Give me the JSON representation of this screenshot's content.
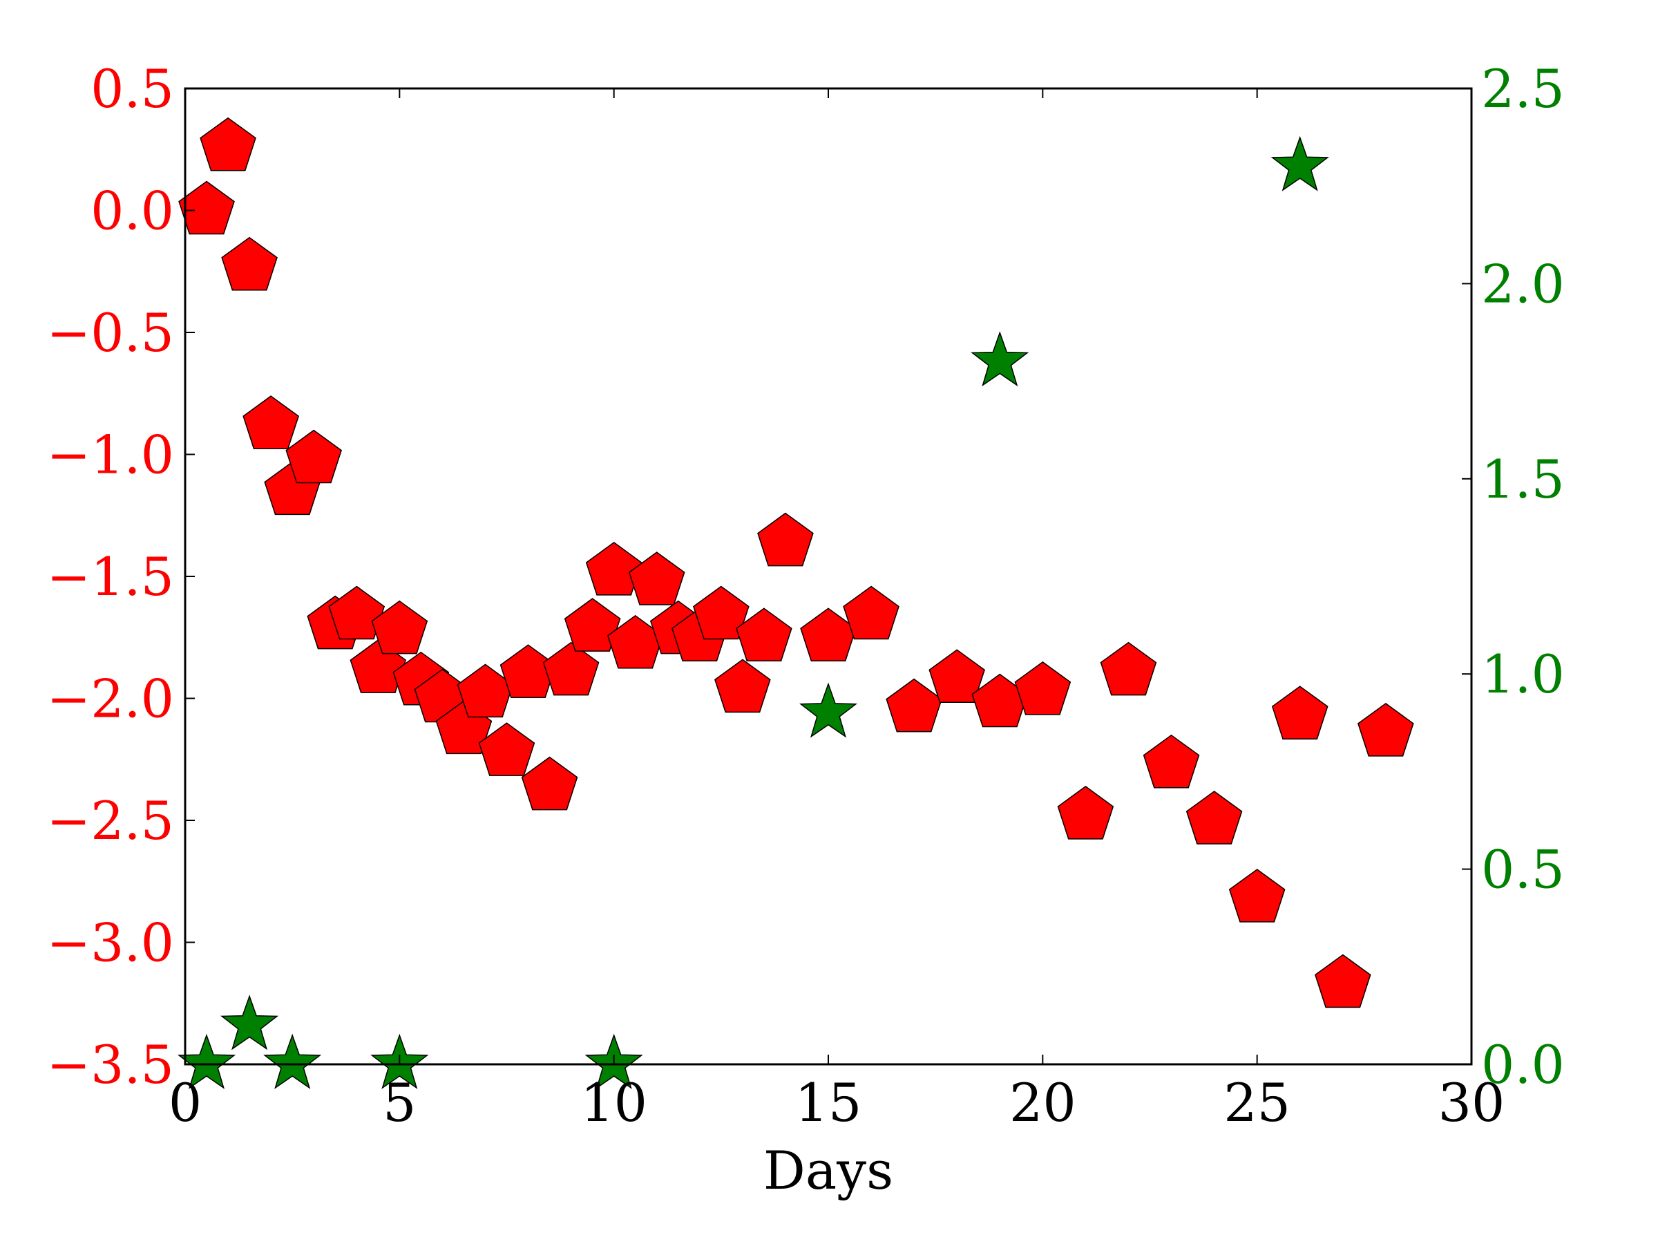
{
  "chart_data": {
    "type": "scatter",
    "title": "",
    "xlabel": "Days",
    "ylabel": "",
    "y2label": "",
    "xlim": [
      0,
      30
    ],
    "ylim": [
      -3.5,
      0.5
    ],
    "y2lim": [
      0.0,
      2.5
    ],
    "grid": false,
    "x_ticks": [
      "0",
      "5",
      "10",
      "15",
      "20",
      "25",
      "30"
    ],
    "y_ticks": [
      "0.5",
      "0.0",
      "−0.5",
      "−1.0",
      "−1.5",
      "−2.0",
      "−2.5",
      "−3.0",
      "−3.5"
    ],
    "y2_ticks": [
      "2.5",
      "2.0",
      "1.5",
      "1.0",
      "0.5",
      "0.0"
    ],
    "colors": {
      "left": "#ff0000",
      "right": "#008000",
      "axis": "#000000"
    },
    "series": [
      {
        "axis": "left",
        "marker": "pentagon",
        "color": "#ff0000",
        "points": [
          [
            0.5,
            0.0
          ],
          [
            1.0,
            0.26
          ],
          [
            1.5,
            -0.23
          ],
          [
            2.0,
            -0.88
          ],
          [
            2.5,
            -1.15
          ],
          [
            3.0,
            -1.02
          ],
          [
            3.5,
            -1.7
          ],
          [
            4.0,
            -1.66
          ],
          [
            4.5,
            -1.88
          ],
          [
            5.0,
            -1.72
          ],
          [
            5.5,
            -1.93
          ],
          [
            6.0,
            -2.0
          ],
          [
            6.5,
            -2.13
          ],
          [
            7.0,
            -1.98
          ],
          [
            7.5,
            -2.22
          ],
          [
            8.0,
            -1.9
          ],
          [
            8.5,
            -2.36
          ],
          [
            9.0,
            -1.89
          ],
          [
            9.5,
            -1.71
          ],
          [
            10.0,
            -1.48
          ],
          [
            10.5,
            -1.78
          ],
          [
            11.0,
            -1.52
          ],
          [
            11.5,
            -1.72
          ],
          [
            12.0,
            -1.75
          ],
          [
            12.5,
            -1.66
          ],
          [
            13.0,
            -1.96
          ],
          [
            13.5,
            -1.75
          ],
          [
            14.0,
            -1.36
          ],
          [
            15.0,
            -1.75
          ],
          [
            16.0,
            -1.66
          ],
          [
            17.0,
            -2.04
          ],
          [
            18.0,
            -1.92
          ],
          [
            19.0,
            -2.02
          ],
          [
            20.0,
            -1.97
          ],
          [
            21.0,
            -2.48
          ],
          [
            22.0,
            -1.89
          ],
          [
            23.0,
            -2.27
          ],
          [
            24.0,
            -2.5
          ],
          [
            25.0,
            -2.82
          ],
          [
            26.0,
            -2.07
          ],
          [
            27.0,
            -3.17
          ],
          [
            28.0,
            -2.14
          ]
        ]
      },
      {
        "axis": "right",
        "marker": "star",
        "color": "#008000",
        "points": [
          [
            0.5,
            0.0
          ],
          [
            1.5,
            0.1
          ],
          [
            2.5,
            0.0
          ],
          [
            5.0,
            0.0
          ],
          [
            10.0,
            0.0
          ],
          [
            15.0,
            0.9
          ],
          [
            19.0,
            1.8
          ],
          [
            26.0,
            2.3
          ]
        ]
      }
    ]
  }
}
